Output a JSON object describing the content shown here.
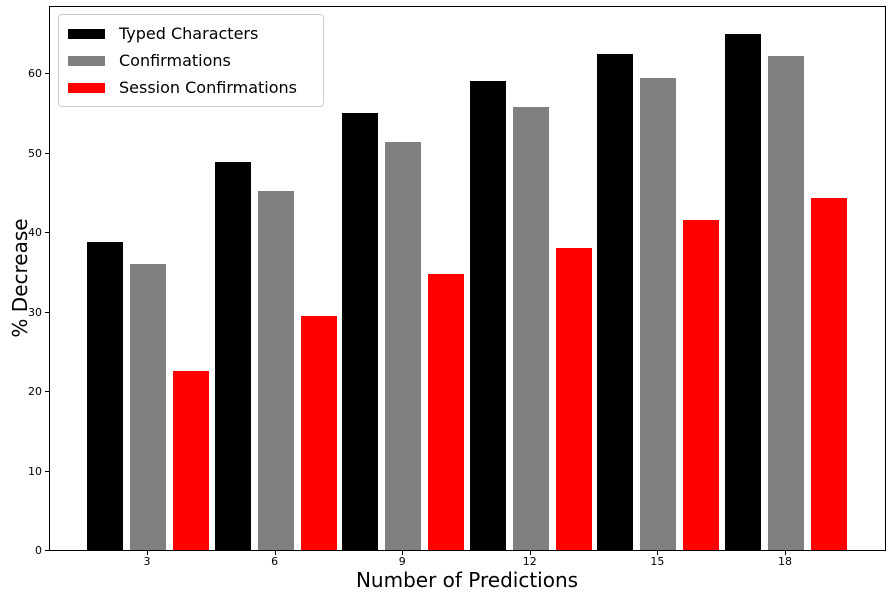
{
  "chart_data": {
    "type": "bar",
    "title": "",
    "xlabel": "Number of Predictions",
    "ylabel": "% Decrease",
    "categories": [
      "3",
      "6",
      "9",
      "12",
      "15",
      "18"
    ],
    "series": [
      {
        "name": "Typed Characters",
        "color": "#000000",
        "values": [
          38.8,
          48.8,
          55.0,
          59.0,
          62.4,
          65.0
        ]
      },
      {
        "name": "Confirmations",
        "color": "#808080",
        "values": [
          36.0,
          45.2,
          51.3,
          55.8,
          59.4,
          62.2
        ]
      },
      {
        "name": "Session Confirmations",
        "color": "#ff0000",
        "values": [
          22.5,
          29.5,
          34.8,
          38.0,
          41.6,
          44.3
        ]
      }
    ],
    "yticks": [
      0,
      10,
      20,
      30,
      40,
      50,
      60
    ],
    "ylim": [
      0,
      68.6
    ],
    "grid": false,
    "legend_position": "upper left",
    "axis_color": "#000000",
    "background_color": "#ffffff"
  }
}
